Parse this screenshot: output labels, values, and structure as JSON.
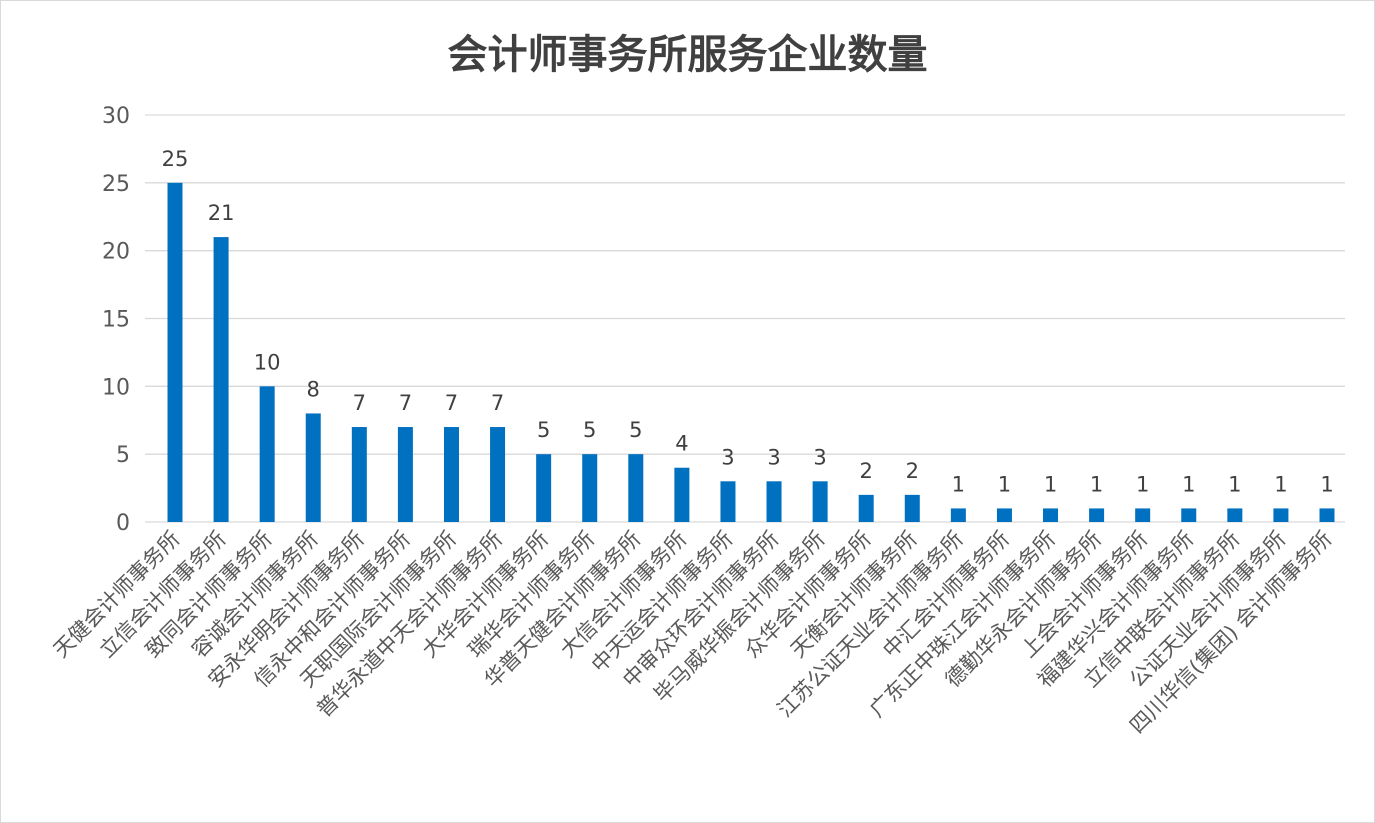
{
  "chart_data": {
    "type": "bar",
    "title": "会计师事务所服务企业数量",
    "xlabel": "",
    "ylabel": "",
    "ylim": [
      0,
      30
    ],
    "yticks": [
      0,
      5,
      10,
      15,
      20,
      25,
      30
    ],
    "grid": true,
    "legend": "none",
    "bar_color": "#0070c0",
    "categories": [
      "天健会计师事务所",
      "立信会计师事务所",
      "致同会计师事务所",
      "容诚会计师事务所",
      "安永华明会计师事务所",
      "信永中和会计师事务所",
      "天职国际会计师事务所",
      "普华永道中天会计师事务所",
      "大华会计师事务所",
      "瑞华会计师事务所",
      "华普天健会计师事务所",
      "大信会计师事务所",
      "中天运会计师事务所",
      "中审众环会计师事务所",
      "毕马威华振会计师事务所",
      "众华会计师事务所",
      "天衡会计师事务所",
      "江苏公证天业会计师事务所",
      "中汇会计师事务所",
      "广东正中珠江会计师事务所",
      "德勤华永会计师事务所",
      "上会会计师事务所",
      "福建华兴会计师事务所",
      "立信中联会计师事务所",
      "公证天业会计师事务所",
      "四川华信(集团) 会计师事务所"
    ],
    "values": [
      25,
      21,
      10,
      8,
      7,
      7,
      7,
      7,
      5,
      5,
      5,
      4,
      3,
      3,
      3,
      2,
      2,
      1,
      1,
      1,
      1,
      1,
      1,
      1,
      1,
      1
    ]
  }
}
